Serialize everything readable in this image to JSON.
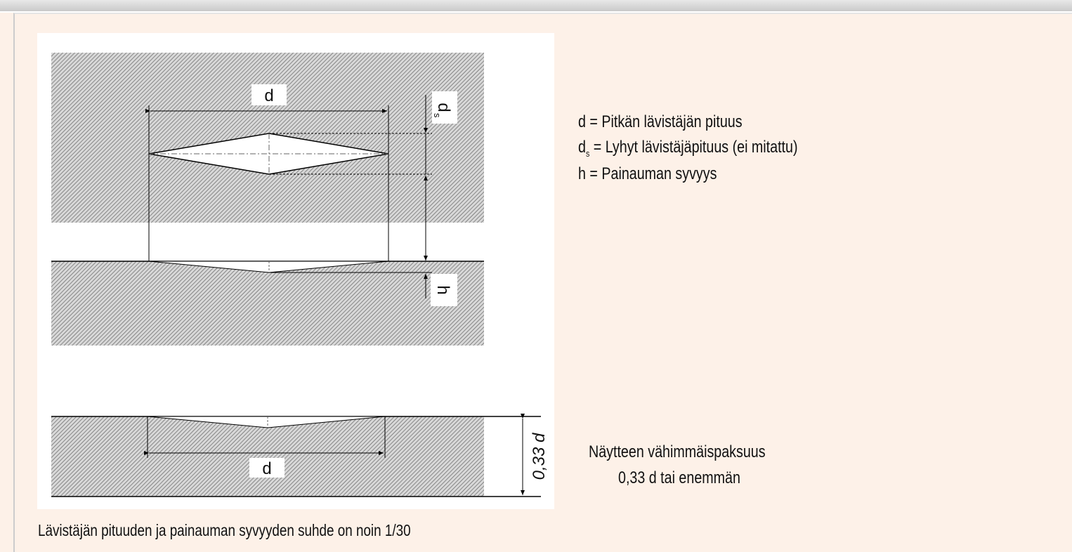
{
  "diagram": {
    "labels": {
      "d_top": "d",
      "ds": "d",
      "ds_sub": "s",
      "h": "h",
      "thickness": "0,33 d",
      "d_bottom": "d"
    }
  },
  "legend": {
    "line1": "d = Pitkän lävistäjän pituus",
    "line2_main": "d",
    "line2_sub": "s",
    "line2_rest": " = Lyhyt lävistäjäpituus (ei mitattu)",
    "line3": "h = Painauman syvyys"
  },
  "note": {
    "line1": "Näytteen vähimmäispaksuus",
    "line2": "0,33 d tai enemmän"
  },
  "caption": "Lävistäjän pituuden ja painauman syvyyden suhde on noin 1/30"
}
